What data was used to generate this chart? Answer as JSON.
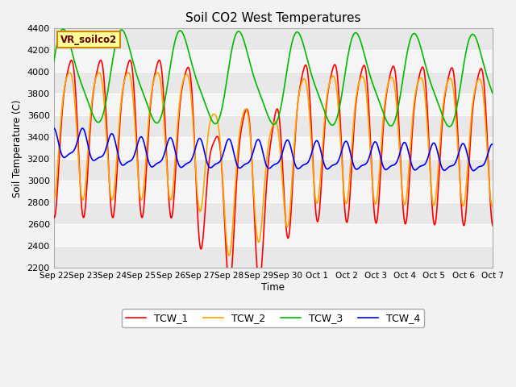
{
  "title": "Soil CO2 West Temperatures",
  "ylabel": "Soil Temperature (C)",
  "xlabel": "Time",
  "annotation": "VR_soilco2",
  "ylim": [
    2200,
    4400
  ],
  "yticks": [
    2200,
    2400,
    2600,
    2800,
    3000,
    3200,
    3400,
    3600,
    3800,
    4000,
    4200,
    4400
  ],
  "xtick_labels": [
    "Sep 22",
    "Sep 23",
    "Sep 24",
    "Sep 25",
    "Sep 26",
    "Sep 27",
    "Sep 28",
    "Sep 29",
    "Sep 30",
    "Oct 1",
    "Oct 2",
    "Oct 3",
    "Oct 4",
    "Oct 5",
    "Oct 6",
    "Oct 7"
  ],
  "legend_labels": [
    "TCW_1",
    "TCW_2",
    "TCW_3",
    "TCW_4"
  ],
  "colors": [
    "#FF0000",
    "#FFA500",
    "#00BB00",
    "#0000FF"
  ],
  "linewidth": 1.2,
  "band_colors": [
    "#E8E8E8",
    "#F5F5F5"
  ],
  "n_points": 800,
  "n_days": 15
}
